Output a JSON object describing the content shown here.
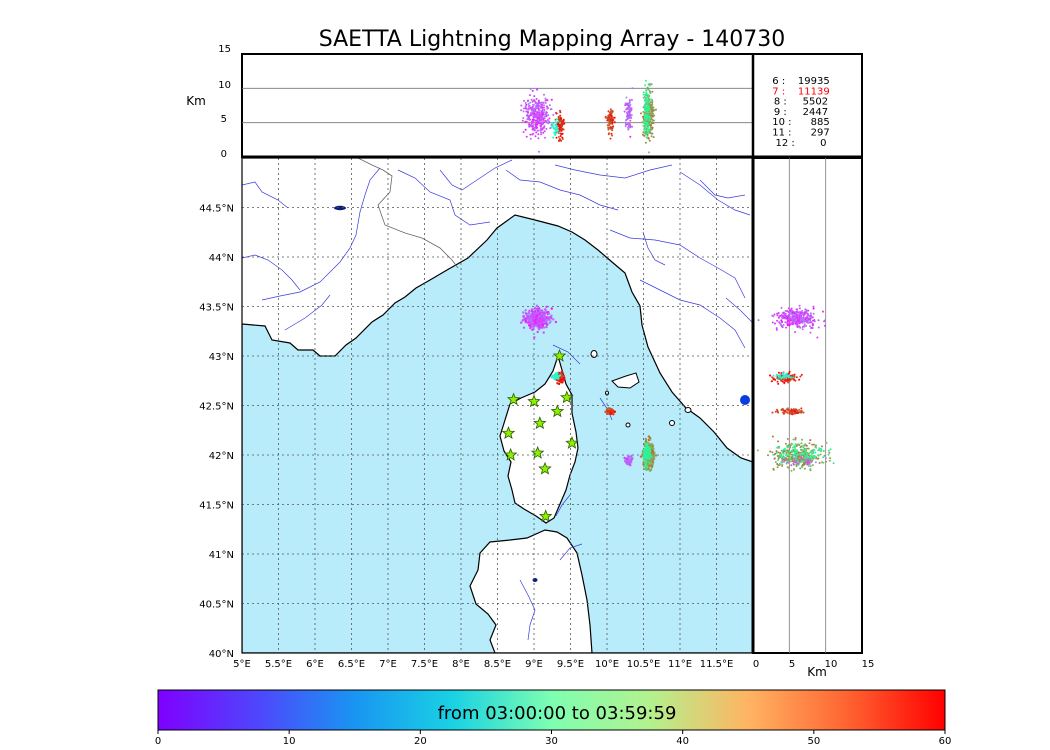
{
  "title": "SAETTA Lightning Mapping Array - 140730",
  "colors": {
    "sea": "#b8ecfb",
    "land": "#ffffff",
    "river": "#3b3bdc",
    "coast": "#000000",
    "grid": "#555555",
    "border": "#000000",
    "highlight": "#ff0000",
    "station_fill": "#8cf000",
    "station_stroke": "#2a5b00"
  },
  "chart_data": {
    "type": "scatter",
    "map": {
      "xlim": [
        5,
        12
      ],
      "ylim": [
        40,
        45
      ],
      "lon_ticks": [
        5,
        5.5,
        6,
        6.5,
        7,
        7.5,
        8,
        8.5,
        9,
        9.5,
        10,
        10.5,
        11,
        11.5
      ],
      "lon_labels": [
        "5°E",
        "5.5°E",
        "6°E",
        "6.5°E",
        "7°E",
        "7.5°E",
        "8°E",
        "8.5°E",
        "9°E",
        "9.5°E",
        "10°E",
        "10.5°E",
        "11°E",
        "11.5°E"
      ],
      "lat_ticks": [
        40,
        40.5,
        41,
        41.5,
        42,
        42.5,
        43,
        43.5,
        44,
        44.5
      ],
      "lat_labels": [
        "40°N",
        "40.5°N",
        "41°N",
        "41.5°N",
        "42°N",
        "42.5°N",
        "43°N",
        "43.5°N",
        "44°N",
        "44.5°N"
      ],
      "grid": true
    },
    "top_panel": {
      "ylabel": "Km",
      "ylim": [
        0,
        15
      ],
      "y_ticks": [
        0,
        5,
        10,
        15
      ],
      "y_labels": [
        "0",
        "5",
        "10",
        "15"
      ],
      "hlines": [
        5,
        10
      ]
    },
    "right_panel": {
      "xlabel": "Km",
      "xlim": [
        0,
        15
      ],
      "x_ticks": [
        0,
        5,
        10,
        15
      ],
      "x_labels": [
        "0",
        "5",
        "10",
        "15"
      ],
      "vlines": [
        5,
        10
      ]
    },
    "stations": [
      {
        "lon": 9.35,
        "lat": 43.0
      },
      {
        "lon": 8.72,
        "lat": 42.56
      },
      {
        "lon": 9.0,
        "lat": 42.54
      },
      {
        "lon": 9.45,
        "lat": 42.58
      },
      {
        "lon": 9.32,
        "lat": 42.44
      },
      {
        "lon": 9.08,
        "lat": 42.32
      },
      {
        "lon": 8.65,
        "lat": 42.22
      },
      {
        "lon": 9.52,
        "lat": 42.12
      },
      {
        "lon": 9.05,
        "lat": 42.02
      },
      {
        "lon": 8.68,
        "lat": 42.0
      },
      {
        "lon": 9.15,
        "lat": 41.86
      },
      {
        "lon": 9.16,
        "lat": 41.38
      }
    ],
    "clusters": [
      {
        "lon": 9.05,
        "lat": 43.38,
        "dlon": 0.18,
        "dlat": 0.1,
        "alt": 6,
        "dalt": 2.6,
        "t": 6,
        "n": 320
      },
      {
        "lon": 9.36,
        "lat": 42.78,
        "dlon": 0.05,
        "dlat": 0.05,
        "alt": 4.5,
        "dalt": 1.8,
        "t": 58,
        "n": 110
      },
      {
        "lon": 9.3,
        "lat": 42.8,
        "dlon": 0.05,
        "dlat": 0.03,
        "alt": 4.2,
        "dalt": 1.2,
        "t": 24,
        "n": 40
      },
      {
        "lon": 10.05,
        "lat": 42.44,
        "dlon": 0.05,
        "dlat": 0.03,
        "alt": 5.5,
        "dalt": 1.8,
        "t": 55,
        "n": 90
      },
      {
        "lon": 10.3,
        "lat": 41.95,
        "dlon": 0.05,
        "dlat": 0.04,
        "alt": 6.5,
        "dalt": 2.2,
        "t": 8,
        "n": 90
      },
      {
        "lon": 10.57,
        "lat": 42.0,
        "dlon": 0.07,
        "dlat": 0.13,
        "alt": 6,
        "dalt": 3.6,
        "t": 48,
        "n": 260
      },
      {
        "lon": 10.55,
        "lat": 42.02,
        "dlon": 0.05,
        "dlat": 0.1,
        "alt": 6.5,
        "dalt": 3.2,
        "t": 36,
        "n": 110
      }
    ],
    "counts": [
      {
        "label": "6 :    19935",
        "color": "#000000"
      },
      {
        "label": "7 :    11139",
        "color": "#ff0000"
      },
      {
        "label": "8 :     5502",
        "color": "#000000"
      },
      {
        "label": "9 :     2447",
        "color": "#000000"
      },
      {
        "label": "10 :      885",
        "color": "#000000"
      },
      {
        "label": "11 :      297",
        "color": "#000000"
      },
      {
        "label": "12 :        0",
        "color": "#000000"
      }
    ],
    "colorbar": {
      "text": "from 03:00:00 to 03:59:59",
      "vmin": 0,
      "vmax": 60,
      "ticks": [
        0,
        10,
        20,
        30,
        40,
        50,
        60
      ],
      "tick_labels": [
        "0",
        "10",
        "20",
        "30",
        "40",
        "50",
        "60"
      ],
      "colormap": "rainbow"
    }
  }
}
